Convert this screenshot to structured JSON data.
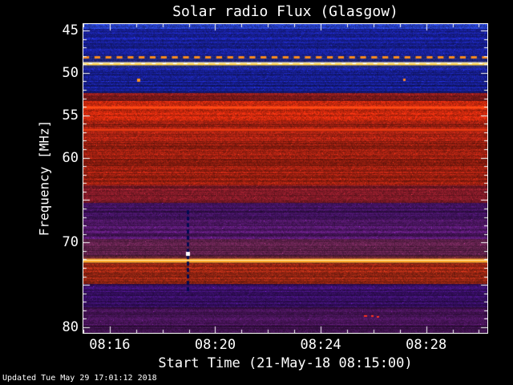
{
  "title": "Solar radio Flux (Glasgow)",
  "axes": {
    "x_title": "Start Time (21-May-18 08:15:00)",
    "y_title": "Frequency [MHz]"
  },
  "footer": "Updated Tue May 29 17:01:12 2018",
  "colors": {
    "background": "#000000",
    "axis": "#ffffff",
    "text": "#ffffff"
  },
  "chart_data": {
    "type": "heatmap",
    "subtype": "dynamic-radio-spectrogram",
    "title": "Solar radio Flux (Glasgow)",
    "xlabel": "Start Time (21-May-18 08:15:00)",
    "ylabel": "Frequency [MHz]",
    "start_time": "21-May-18 08:15:00",
    "time_span_min": 15.32,
    "freq_range": [
      44.24,
      80.66
    ],
    "x_ticks": [
      {
        "t": 1,
        "label": "08:16"
      },
      {
        "t": 5,
        "label": "08:20"
      },
      {
        "t": 9,
        "label": "08:24"
      },
      {
        "t": 13,
        "label": "08:28"
      }
    ],
    "x_minor_step_min": 1,
    "y_ticks": [
      {
        "value": 45,
        "label": "45"
      },
      {
        "value": 50,
        "label": "50"
      },
      {
        "value": 55,
        "label": "55"
      },
      {
        "value": 60,
        "label": "60"
      },
      {
        "value": 65,
        "label": ""
      },
      {
        "value": 70,
        "label": "70"
      },
      {
        "value": 75,
        "label": ""
      },
      {
        "value": 80,
        "label": "80"
      }
    ],
    "y_minor_step": 1,
    "bands": [
      {
        "f0": 44.24,
        "f1": 44.85,
        "color": "#2d4ae6",
        "striation": 0.25
      },
      {
        "f0": 44.85,
        "f1": 48.0,
        "color": "#1f2ac8",
        "striation": 0.5
      },
      {
        "f0": 48.0,
        "f1": 49.4,
        "color": "#232e9e",
        "striation": 0.35
      },
      {
        "f0": 49.4,
        "f1": 52.4,
        "color": "#1f2ac8",
        "striation": 0.5
      },
      {
        "f0": 52.4,
        "f1": 53.3,
        "color": "#a62222",
        "striation": 0.4
      },
      {
        "f0": 53.3,
        "f1": 55.7,
        "color": "#ef3010",
        "striation": 0.28
      },
      {
        "f0": 55.7,
        "f1": 63.3,
        "color": "#c62815",
        "striation": 0.42
      },
      {
        "f0": 63.3,
        "f1": 65.3,
        "color": "#9e2030",
        "striation": 0.45
      },
      {
        "f0": 65.3,
        "f1": 67.2,
        "color": "#4d1670",
        "striation": 0.5
      },
      {
        "f0": 67.2,
        "f1": 69.6,
        "color": "#6b1f8a",
        "striation": 0.5
      },
      {
        "f0": 69.6,
        "f1": 71.6,
        "color": "#7a2a60",
        "striation": 0.5
      },
      {
        "f0": 71.6,
        "f1": 72.4,
        "color": "#8c3246",
        "striation": 0.4
      },
      {
        "f0": 72.4,
        "f1": 74.9,
        "color": "#c03018",
        "striation": 0.4
      },
      {
        "f0": 74.9,
        "f1": 77.6,
        "color": "#4a1486",
        "striation": 0.5
      },
      {
        "f0": 77.6,
        "f1": 80.66,
        "color": "#5c1a72",
        "striation": 0.55
      }
    ],
    "lines": [
      {
        "freq": 48.1,
        "type": "dashed",
        "color": "#ff8c1e",
        "thickness": 3,
        "dash_min": 0.22,
        "period_min": 0.42
      },
      {
        "freq": 48.8,
        "type": "solid",
        "color": "#ffd24a",
        "core": "#fffbe0",
        "thickness": 3,
        "dashes_on_top": {
          "color": "#ffffff",
          "dash_min": 0.14,
          "period_min": 0.4
        }
      },
      {
        "freq": 54.0,
        "type": "solid",
        "color": "#ff4a14",
        "thickness": 2
      },
      {
        "freq": 56.6,
        "type": "solid",
        "color": "#e83812",
        "thickness": 2
      },
      {
        "freq": 72.0,
        "type": "solid",
        "color": "#ffaa28",
        "core": "#ffe8b0",
        "thickness": 4
      }
    ],
    "events": [
      {
        "type": "dot",
        "t": 2.1,
        "freq": 50.9,
        "color": "#ff9628",
        "w": 4,
        "h": 4
      },
      {
        "type": "dot",
        "t": 12.15,
        "freq": 50.8,
        "color": "#ff8828",
        "w": 3,
        "h": 3
      },
      {
        "type": "streak",
        "t": 3.95,
        "f0": 66.2,
        "f1": 75.4,
        "color": "#000a50",
        "width": 3,
        "seg": 5,
        "gap": 3
      },
      {
        "type": "dot",
        "t": 3.95,
        "freq": 71.3,
        "color": "#ffffff",
        "w": 5,
        "h": 5
      },
      {
        "type": "dot",
        "t": 10.7,
        "freq": 78.7,
        "color": "#ff3220",
        "w": 4,
        "h": 2
      },
      {
        "type": "dot",
        "t": 10.95,
        "freq": 78.7,
        "color": "#ff3220",
        "w": 3,
        "h": 2
      },
      {
        "type": "dot",
        "t": 11.15,
        "freq": 78.8,
        "color": "#ff3220",
        "w": 3,
        "h": 2
      }
    ]
  }
}
